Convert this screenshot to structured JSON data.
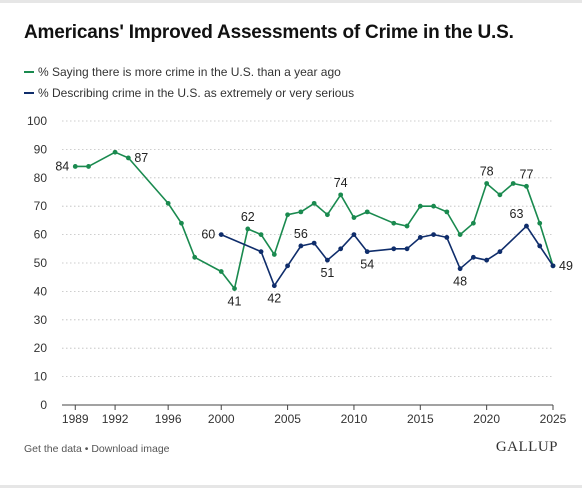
{
  "title": "Americans' Improved Assessments of Crime in the U.S.",
  "legend": [
    {
      "label": "% Saying there is more crime in the U.S. than a year ago",
      "color": "#1a8a4f"
    },
    {
      "label": "% Describing crime in the U.S. as extremely or very serious",
      "color": "#0f2d6b"
    }
  ],
  "footer": {
    "get_data": "Get the data",
    "separator": " • ",
    "download": "Download image",
    "brand": "GALLUP"
  },
  "chart_data": {
    "type": "line",
    "ylim": [
      0,
      100
    ],
    "yticks": [
      0,
      10,
      20,
      30,
      40,
      50,
      60,
      70,
      80,
      90,
      100
    ],
    "xlim": [
      1988,
      2025
    ],
    "xticks": [
      1989,
      1992,
      1996,
      2000,
      2005,
      2010,
      2015,
      2020,
      2025
    ],
    "grid": true,
    "legend_position": "top-left",
    "series": [
      {
        "name": "% Saying there is more crime in the U.S. than a year ago",
        "color": "#1a8a4f",
        "x": [
          1989,
          1990,
          1992,
          1993,
          1996,
          1997,
          1998,
          2000,
          2001,
          2002,
          2003,
          2004,
          2005,
          2006,
          2007,
          2008,
          2009,
          2010,
          2011,
          2013,
          2014,
          2015,
          2016,
          2017,
          2018,
          2019,
          2020,
          2021,
          2022,
          2023,
          2024,
          2025
        ],
        "y": [
          84,
          84,
          89,
          87,
          71,
          64,
          52,
          47,
          41,
          62,
          60,
          53,
          67,
          68,
          71,
          67,
          74,
          66,
          68,
          64,
          63,
          70,
          70,
          68,
          60,
          64,
          78,
          74,
          78,
          77,
          64,
          49
        ]
      },
      {
        "name": "% Describing crime in the U.S. as extremely or very serious",
        "color": "#0f2d6b",
        "x": [
          2000,
          2003,
          2004,
          2005,
          2006,
          2007,
          2008,
          2009,
          2010,
          2011,
          2013,
          2014,
          2015,
          2016,
          2017,
          2018,
          2019,
          2020,
          2021,
          2023,
          2024,
          2025
        ],
        "y": [
          60,
          54,
          42,
          49,
          56,
          57,
          51,
          55,
          60,
          54,
          55,
          55,
          59,
          60,
          59,
          48,
          52,
          51,
          54,
          63,
          56,
          49
        ]
      }
    ],
    "annotations": [
      {
        "text": "84",
        "series": 0,
        "x": 1989,
        "y": 84,
        "pos": "left"
      },
      {
        "text": "87",
        "series": 0,
        "x": 1993,
        "y": 87,
        "pos": "right"
      },
      {
        "text": "41",
        "series": 0,
        "x": 2001,
        "y": 41,
        "pos": "below"
      },
      {
        "text": "62",
        "series": 0,
        "x": 2002,
        "y": 62,
        "pos": "above"
      },
      {
        "text": "74",
        "series": 0,
        "x": 2009,
        "y": 74,
        "pos": "above"
      },
      {
        "text": "78",
        "series": 0,
        "x": 2020,
        "y": 78,
        "pos": "above"
      },
      {
        "text": "77",
        "series": 0,
        "x": 2023,
        "y": 77,
        "pos": "above"
      },
      {
        "text": "49",
        "series": 0,
        "x": 2025,
        "y": 49,
        "pos": "right"
      },
      {
        "text": "60",
        "series": 1,
        "x": 2000,
        "y": 60,
        "pos": "left"
      },
      {
        "text": "42",
        "series": 1,
        "x": 2004,
        "y": 42,
        "pos": "below"
      },
      {
        "text": "56",
        "series": 1,
        "x": 2006,
        "y": 56,
        "pos": "above"
      },
      {
        "text": "51",
        "series": 1,
        "x": 2008,
        "y": 51,
        "pos": "below"
      },
      {
        "text": "54",
        "series": 1,
        "x": 2011,
        "y": 54,
        "pos": "below"
      },
      {
        "text": "48",
        "series": 1,
        "x": 2018,
        "y": 48,
        "pos": "below"
      },
      {
        "text": "63",
        "series": 1,
        "x": 2023,
        "y": 63,
        "pos": "aboveleft"
      }
    ]
  }
}
